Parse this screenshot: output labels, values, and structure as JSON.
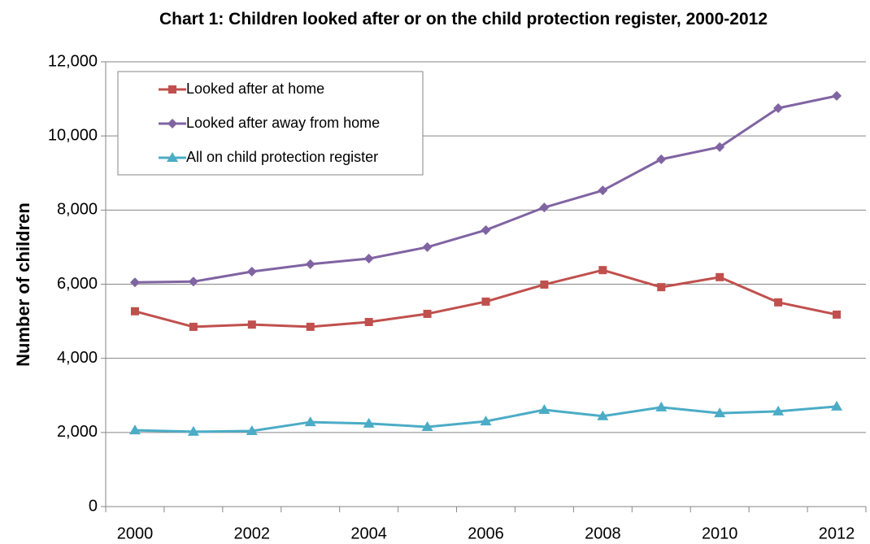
{
  "chart_data": {
    "type": "line",
    "title": "Chart 1: Children looked after or on the child protection register, 2000-2012",
    "y_label": "Number of children",
    "categories": [
      "2000",
      null,
      "2002",
      null,
      "2004",
      null,
      "2006",
      null,
      "2008",
      null,
      "2010",
      null,
      "2012"
    ],
    "series": [
      {
        "name": "Looked after at home",
        "color": "#c0504d",
        "marker": "square",
        "values": [
          5270,
          4850,
          4910,
          4850,
          4980,
          5200,
          5530,
          5990,
          6380,
          5920,
          6190,
          5510,
          5180
        ]
      },
      {
        "name": "Looked after away from home",
        "color": "#8064a2",
        "marker": "diamond",
        "values": [
          6050,
          6070,
          6340,
          6540,
          6690,
          7000,
          7460,
          8070,
          8530,
          9370,
          9700,
          10750,
          11080
        ]
      },
      {
        "name": "All on child protection register",
        "color": "#4bacc6",
        "marker": "triangle",
        "values": [
          2060,
          2020,
          2040,
          2280,
          2240,
          2150,
          2300,
          2610,
          2440,
          2680,
          2520,
          2570,
          2700
        ]
      }
    ],
    "ylim": [
      0,
      12000
    ],
    "yticks": [
      0,
      {
        "value": 2000,
        "label": "2,000"
      },
      {
        "value": 4000,
        "label": "4,000"
      },
      {
        "value": 6000,
        "label": "6,000"
      },
      {
        "value": 8000,
        "label": "8,000"
      },
      {
        "value": 10000,
        "label": "10,000"
      },
      {
        "value": 12000,
        "label": "12,000"
      }
    ],
    "grid": true,
    "legend": "upper left"
  }
}
